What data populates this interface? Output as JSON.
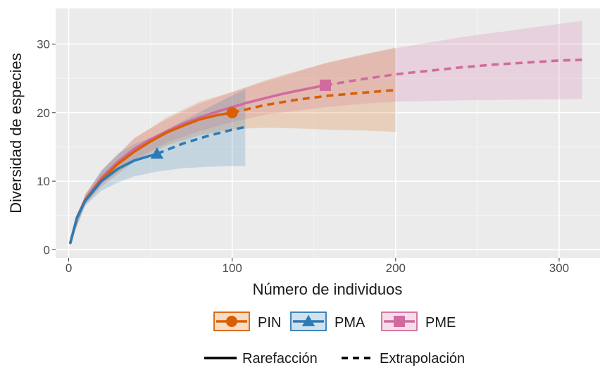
{
  "chart_data": {
    "type": "line",
    "xlabel": "Número de individuos",
    "ylabel": "Diversidad de especies",
    "xlim": [
      -8,
      325
    ],
    "ylim": [
      -1.2,
      35.2
    ],
    "x_ticks": [
      0,
      100,
      200,
      300
    ],
    "y_ticks": [
      0,
      10,
      20,
      30
    ],
    "x_tick_labels": [
      "0",
      "100",
      "200",
      "300"
    ],
    "y_tick_labels": [
      "0",
      "10",
      "20",
      "30"
    ],
    "grid": true,
    "background": "#ebebeb",
    "legend_position": "bottom",
    "series": [
      {
        "name": "PIN",
        "color": "#d95f02",
        "marker": "circle",
        "observed": {
          "x": 100,
          "y": 20
        },
        "rarefaction": {
          "x": [
            1,
            5,
            10,
            20,
            30,
            40,
            50,
            60,
            70,
            80,
            90,
            100
          ],
          "y": [
            1,
            4.6,
            7.2,
            10.2,
            12.5,
            14.3,
            15.8,
            17.1,
            18.1,
            19.0,
            19.6,
            20.0
          ]
        },
        "extrapolation": {
          "x": [
            100,
            120,
            140,
            160,
            180,
            200
          ],
          "y": [
            20.0,
            21.1,
            21.9,
            22.5,
            22.9,
            23.3
          ]
        },
        "ci_lower": {
          "x": [
            1,
            10,
            20,
            40,
            60,
            80,
            100,
            120,
            140,
            160,
            180,
            200
          ],
          "y": [
            1,
            6.5,
            9.2,
            12.8,
            15.2,
            16.7,
            17.6,
            17.8,
            17.7,
            17.5,
            17.4,
            17.2
          ]
        },
        "ci_upper": {
          "x": [
            1,
            10,
            20,
            40,
            60,
            80,
            100,
            120,
            140,
            160,
            180,
            200
          ],
          "y": [
            1,
            8.1,
            11.4,
            16.2,
            19.3,
            21.6,
            23.0,
            24.7,
            26.1,
            27.4,
            28.5,
            29.5
          ]
        }
      },
      {
        "name": "PMA",
        "color": "#2c7bb6",
        "marker": "triangle",
        "observed": {
          "x": 54,
          "y": 14
        },
        "rarefaction": {
          "x": [
            1,
            5,
            10,
            20,
            30,
            40,
            54
          ],
          "y": [
            1,
            4.6,
            7.1,
            10.0,
            11.8,
            13.0,
            14.0
          ]
        },
        "extrapolation": {
          "x": [
            54,
            70,
            85,
            100,
            108
          ],
          "y": [
            14.0,
            15.5,
            16.6,
            17.5,
            17.9
          ]
        },
        "ci_lower": {
          "x": [
            1,
            10,
            20,
            30,
            40,
            54,
            70,
            85,
            100,
            108
          ],
          "y": [
            1,
            6.4,
            8.6,
            9.8,
            10.7,
            11.4,
            11.9,
            12.1,
            12.2,
            12.2
          ]
        },
        "ci_upper": {
          "x": [
            1,
            10,
            20,
            30,
            40,
            54,
            70,
            85,
            100,
            108
          ],
          "y": [
            1,
            7.9,
            11.6,
            14.0,
            15.4,
            16.7,
            18.8,
            20.7,
            22.5,
            23.4
          ]
        }
      },
      {
        "name": "PME",
        "color": "#d16b9e",
        "marker": "square",
        "observed": {
          "x": 157,
          "y": 24
        },
        "rarefaction": {
          "x": [
            1,
            5,
            10,
            20,
            30,
            40,
            50,
            60,
            70,
            80,
            90,
            100,
            110,
            120,
            130,
            140,
            157
          ],
          "y": [
            1,
            4.7,
            7.3,
            10.5,
            12.8,
            14.7,
            16.1,
            17.3,
            18.4,
            19.3,
            20.1,
            20.8,
            21.5,
            22.1,
            22.7,
            23.2,
            24.0
          ]
        },
        "extrapolation": {
          "x": [
            157,
            180,
            200,
            220,
            240,
            260,
            280,
            300,
            314
          ],
          "y": [
            24.0,
            24.9,
            25.6,
            26.1,
            26.6,
            27.0,
            27.3,
            27.6,
            27.7
          ]
        },
        "ci_lower": {
          "x": [
            1,
            10,
            20,
            40,
            60,
            80,
            100,
            120,
            157,
            180,
            200,
            240,
            280,
            314
          ],
          "y": [
            1,
            6.6,
            9.5,
            13.1,
            15.6,
            17.3,
            18.6,
            19.7,
            20.8,
            21.3,
            21.6,
            21.8,
            21.9,
            22.0
          ]
        },
        "ci_upper": {
          "x": [
            1,
            10,
            20,
            40,
            60,
            80,
            100,
            120,
            157,
            180,
            200,
            240,
            280,
            314
          ],
          "y": [
            1,
            8.0,
            11.5,
            16.3,
            19.0,
            21.3,
            23.0,
            24.5,
            27.2,
            28.4,
            29.4,
            31.0,
            32.3,
            33.4
          ]
        }
      }
    ],
    "linetype_legend": [
      {
        "label": "Rarefacción",
        "style": "solid"
      },
      {
        "label": "Extrapolación",
        "style": "dashed"
      }
    ]
  }
}
